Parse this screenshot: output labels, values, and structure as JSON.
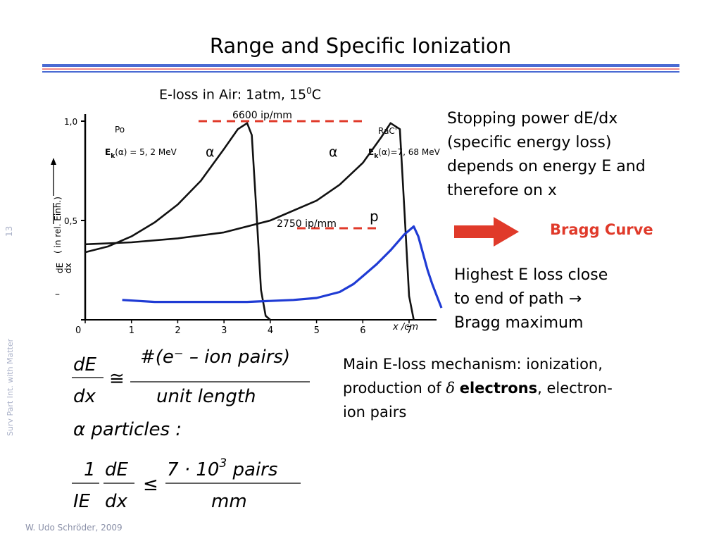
{
  "slide": {
    "title": "Range and Specific Ionization",
    "page_number": "13",
    "side_label": "Surv Part Int. with Matter",
    "footer": "W. Udo Schröder, 2009"
  },
  "figure": {
    "caption_pre": "E-loss in Air: 1atm, 15",
    "caption_sup": "0",
    "caption_post": "C",
    "peak_label_high": "6600 ip/mm",
    "peak_label_low": "2750 ip/mm",
    "alpha_symbol": "α",
    "proton_symbol": "p",
    "left_source": "Po",
    "left_energy": "E",
    "left_energy_sub": "k",
    "left_energy_rest": "(α) = 5, 2 MeV",
    "right_source": "RaC'",
    "right_energy": "E",
    "right_energy_sub": "k",
    "right_energy_rest": "(α)=7, 68 MeV",
    "y_label_main": "dE",
    "y_label_den": "dx",
    "y_label_units": "( in rel. Einh.)",
    "y_minus": "–",
    "x_label": "x /cm",
    "accent_red": "#e03a2a",
    "proton_blue": "#1f3bd4"
  },
  "chart_data": {
    "type": "line",
    "xlabel": "x /cm",
    "ylabel": "– dE/dx ( in rel. Einh.)",
    "xlim": [
      0,
      7.5
    ],
    "ylim": [
      0,
      1.0
    ],
    "x_ticks": [
      "0",
      "1",
      "2",
      "3",
      "4",
      "5",
      "6",
      "7"
    ],
    "y_ticks": [
      "0",
      "0,5",
      "1,0"
    ],
    "series": [
      {
        "x": [
          0.0,
          0.5,
          1.0,
          1.5,
          2.0,
          2.5,
          3.0,
          3.3,
          3.5,
          3.6,
          3.7,
          3.8,
          3.9,
          4.0
        ],
        "values": [
          0.34,
          0.37,
          0.42,
          0.49,
          0.58,
          0.7,
          0.86,
          0.96,
          0.99,
          0.93,
          0.55,
          0.15,
          0.02,
          0.0
        ]
      },
      {
        "x": [
          0.0,
          1.0,
          2.0,
          3.0,
          4.0,
          5.0,
          5.5,
          6.0,
          6.4,
          6.6,
          6.8,
          6.9,
          7.0,
          7.1
        ],
        "values": [
          0.38,
          0.39,
          0.41,
          0.44,
          0.5,
          0.6,
          0.68,
          0.79,
          0.92,
          0.99,
          0.96,
          0.55,
          0.12,
          0.0
        ]
      },
      {
        "name": "p",
        "x": [
          0.8,
          1.5,
          2.5,
          3.5,
          4.5,
          5.0,
          5.5,
          5.8,
          6.0,
          6.3,
          6.6,
          6.9,
          7.1,
          7.2,
          7.4,
          7.5,
          7.6,
          7.7
        ],
        "values": [
          0.1,
          0.09,
          0.09,
          0.09,
          0.1,
          0.11,
          0.14,
          0.18,
          0.22,
          0.28,
          0.35,
          0.43,
          0.47,
          0.42,
          0.25,
          0.18,
          0.12,
          0.06
        ]
      }
    ]
  },
  "right_text": {
    "line1": "Stopping power  dE/dx",
    "line2": "(specific energy loss)",
    "line3": "depends on energy E and",
    "line4": "therefore on x",
    "bragg": "Bragg Curve",
    "highest1": "Highest E loss close",
    "highest2": "to end of path →",
    "highest3": "Bragg maximum",
    "mech1": "Main E-loss mechanism: ionization,",
    "mech2_pre": "production of ",
    "mech2_delta": "δ",
    "mech2_bold": "electrons",
    "mech2_post": ", electron-",
    "mech3": "ion pairs"
  },
  "formulas": {
    "f1_num_left": "dE",
    "f1_den_left": "dx",
    "f1_sym": "≅",
    "f1_num_right": "#(e⁻ – ion pairs)",
    "f1_den_right": "unit  length",
    "alpha_line": "α particles :",
    "f2_one": "1",
    "f2_ie": "IE",
    "f2_de": "dE",
    "f2_dx": "dx",
    "f2_le": "≤",
    "f2_num": "7 · 10",
    "f2_exp": "3",
    "f2_num_tail": " pairs",
    "f2_den": "mm"
  }
}
